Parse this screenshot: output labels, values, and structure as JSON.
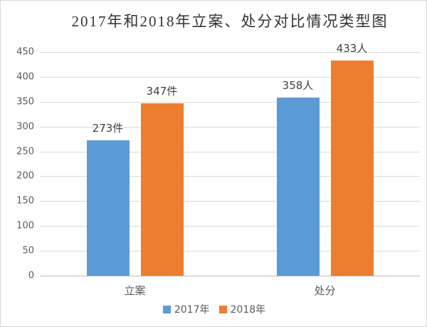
{
  "chart_data": {
    "type": "bar",
    "title": "2017年和2018年立案、处分对比情况类型图",
    "categories": [
      "立案",
      "处分"
    ],
    "series": [
      {
        "name": "2017年",
        "color": "#5B9BD5",
        "values": [
          273,
          358
        ],
        "data_labels": [
          "273件",
          "358人"
        ]
      },
      {
        "name": "2018年",
        "color": "#ED7D31",
        "values": [
          347,
          433
        ],
        "data_labels": [
          "347件",
          "433人"
        ]
      }
    ],
    "ylim": [
      0,
      450
    ],
    "ytick_step": 50,
    "ytick_labels": [
      "0",
      "50",
      "100",
      "150",
      "200",
      "250",
      "300",
      "350",
      "400",
      "450"
    ],
    "grid": "horizontal",
    "gridline_color": "#D9D9D9",
    "axis_label_color": "#595959",
    "data_label_color": "#404040",
    "legend_position": "bottom"
  }
}
